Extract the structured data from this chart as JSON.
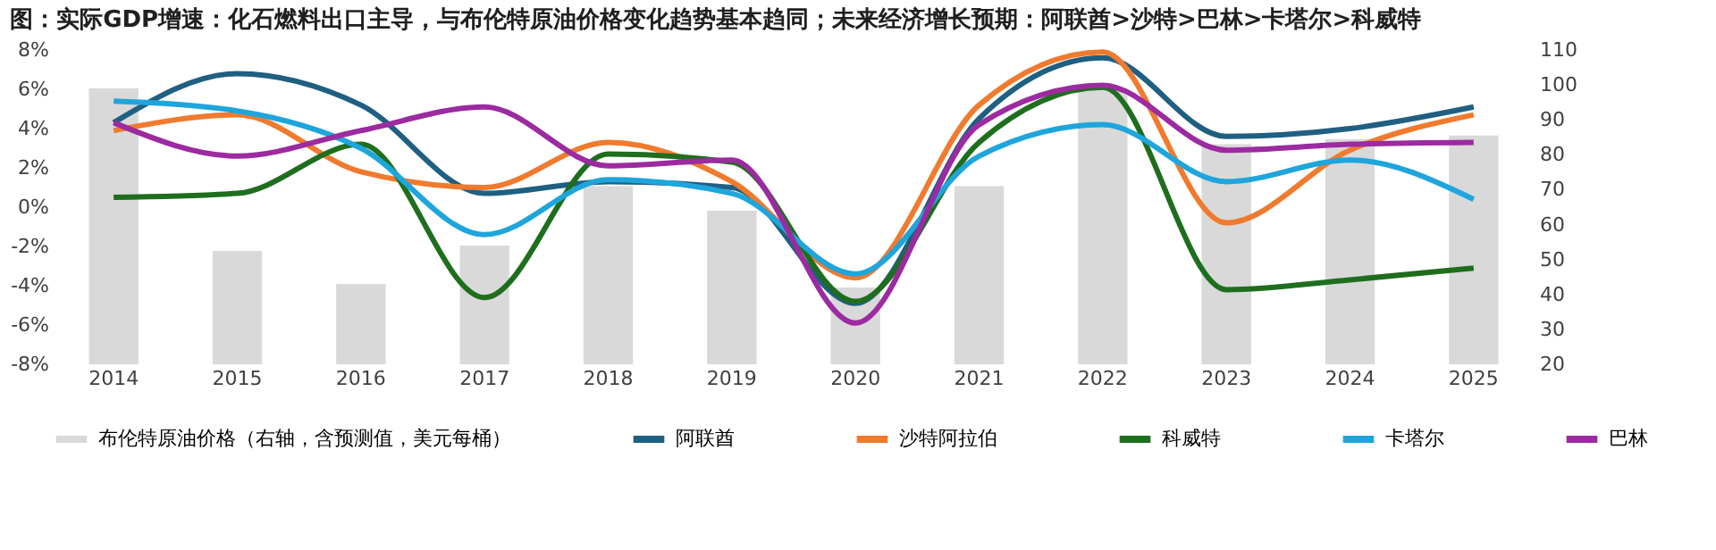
{
  "chart_data": {
    "type": "line",
    "title": "图：实际GDP增速：化石燃料出口主导，与布伦特原油价格变化趋势基本趋同；未来经济增长预期：阿联酋>沙特>巴林>卡塔尔>科威特",
    "categories": [
      "2014",
      "2015",
      "2016",
      "2017",
      "2018",
      "2019",
      "2020",
      "2021",
      "2022",
      "2023",
      "2024",
      "2025"
    ],
    "series": [
      {
        "name": "布伦特原油价格（右轴，含预测值，美元每桶）",
        "type": "bar",
        "axis": "y2",
        "color": "#d9d9d9",
        "values": [
          99,
          52.5,
          43,
          54,
          71,
          64,
          42,
          71,
          99,
          83,
          84.5,
          85.5
        ]
      },
      {
        "name": "阿联酋",
        "color": "#1f5f82",
        "values": [
          4.3,
          6.8,
          5.2,
          0.7,
          1.3,
          1.0,
          -4.9,
          4.5,
          7.6,
          3.6,
          4.0,
          5.1
        ]
      },
      {
        "name": "沙特阿拉伯",
        "color": "#f07a2e",
        "values": [
          3.9,
          4.7,
          1.8,
          1.0,
          3.3,
          1.3,
          -3.6,
          5.2,
          7.9,
          -0.8,
          2.9,
          4.7
        ]
      },
      {
        "name": "科威特",
        "color": "#1e6e1e",
        "values": [
          0.5,
          0.7,
          3.2,
          -4.6,
          2.7,
          2.3,
          -4.8,
          3.3,
          6.1,
          -4.2,
          -3.7,
          -3.1
        ]
      },
      {
        "name": "卡塔尔",
        "color": "#1ea5dc",
        "values": [
          5.4,
          4.9,
          3.0,
          -1.4,
          1.4,
          0.7,
          -3.4,
          2.6,
          4.2,
          1.3,
          2.4,
          0.4
        ]
      },
      {
        "name": "巴林",
        "color": "#9c2aa0",
        "values": [
          4.3,
          2.6,
          3.9,
          5.1,
          2.1,
          2.4,
          -5.9,
          4.2,
          6.2,
          2.9,
          3.2,
          3.3
        ]
      }
    ],
    "ylim": [
      -8,
      8
    ],
    "yticks": [
      {
        "value": -8,
        "label": "-8%"
      },
      {
        "value": -6,
        "label": "-6%"
      },
      {
        "value": -4,
        "label": "-4%"
      },
      {
        "value": -2,
        "label": "-2%"
      },
      {
        "value": 0,
        "label": "0%"
      },
      {
        "value": 2,
        "label": "2%"
      },
      {
        "value": 4,
        "label": "4%"
      },
      {
        "value": 6,
        "label": "6%"
      },
      {
        "value": 8,
        "label": "8%"
      }
    ],
    "y2lim": [
      20,
      110
    ],
    "y2ticks": [
      20,
      30,
      40,
      50,
      60,
      70,
      80,
      90,
      100,
      110
    ],
    "legend": "bottom",
    "grid": false,
    "marker": "none",
    "line_style": "solid"
  }
}
